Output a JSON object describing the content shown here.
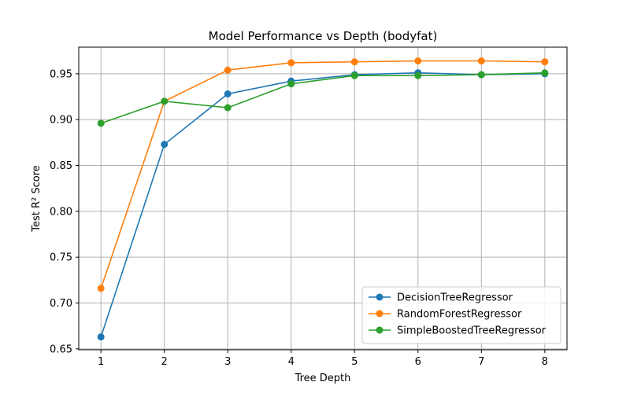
{
  "chart_data": {
    "type": "line",
    "title": "Model Performance vs Depth (bodyfat)",
    "xlabel": "Tree Depth",
    "ylabel": "Test R² Score",
    "x": [
      1,
      2,
      3,
      4,
      5,
      6,
      7,
      8
    ],
    "xlim": [
      0.65,
      8.35
    ],
    "ylim": [
      0.649,
      0.979
    ],
    "xticks": [
      "1",
      "2",
      "3",
      "4",
      "5",
      "6",
      "7",
      "8"
    ],
    "yticks": [
      "0.65",
      "0.70",
      "0.75",
      "0.80",
      "0.85",
      "0.90",
      "0.95"
    ],
    "grid": true,
    "legend_position": "lower-right",
    "series": [
      {
        "name": "DecisionTreeRegressor",
        "color": "#1f77b4",
        "values": [
          0.663,
          0.873,
          0.928,
          0.942,
          0.949,
          0.951,
          0.949,
          0.95
        ]
      },
      {
        "name": "RandomForestRegressor",
        "color": "#ff7f0e",
        "values": [
          0.716,
          0.92,
          0.954,
          0.962,
          0.963,
          0.964,
          0.964,
          0.963
        ]
      },
      {
        "name": "SimpleBoostedTreeRegressor",
        "color": "#2ca02c",
        "values": [
          0.896,
          0.92,
          0.913,
          0.939,
          0.948,
          0.948,
          0.949,
          0.951
        ]
      }
    ]
  }
}
